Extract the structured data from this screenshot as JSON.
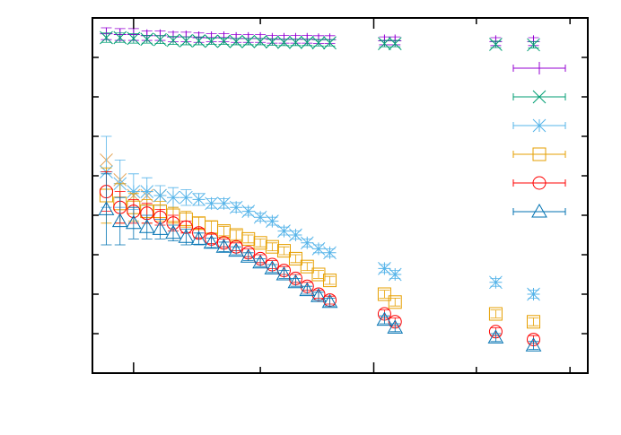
{
  "chart_data": {
    "type": "scatter",
    "x_scale": "log",
    "xlim": [
      0.77,
      1.22
    ],
    "ylim": [
      0,
      9
    ],
    "grid": false,
    "legend_position": "right",
    "colors": {
      "axis": "#000000",
      "purple": "#9400d3",
      "green": "#009e73",
      "sky": "#56b4e9",
      "orange": "#e69f00",
      "red": "#ff0000",
      "blue": "#0072b2"
    },
    "x": [
      0.78,
      0.79,
      0.8,
      0.81,
      0.82,
      0.83,
      0.84,
      0.85,
      0.86,
      0.87,
      0.88,
      0.89,
      0.9,
      0.91,
      0.92,
      0.93,
      0.94,
      0.95,
      0.96,
      1.01,
      1.02,
      1.12,
      1.16
    ],
    "series": [
      {
        "marker": "plus",
        "color": "#9400d3",
        "show_err": true,
        "values": [
          8.6,
          8.58,
          8.58,
          8.55,
          8.55,
          8.52,
          8.52,
          8.5,
          8.5,
          8.5,
          8.48,
          8.48,
          8.48,
          8.46,
          8.46,
          8.46,
          8.46,
          8.45,
          8.45,
          8.42,
          8.42,
          8.4,
          8.4
        ],
        "errors": [
          0.15,
          0.15,
          0.15,
          0.12,
          0.12,
          0.12,
          0.12,
          0.12,
          0.1,
          0.1,
          0.1,
          0.1,
          0.1,
          0.1,
          0.1,
          0.1,
          0.1,
          0.1,
          0.1,
          0.1,
          0.1,
          0.1,
          0.1
        ]
      },
      {
        "marker": "x",
        "color": "#009e73",
        "show_err": true,
        "values": [
          8.5,
          8.5,
          8.48,
          8.46,
          8.45,
          8.43,
          8.42,
          8.42,
          8.41,
          8.41,
          8.4,
          8.4,
          8.4,
          8.39,
          8.38,
          8.38,
          8.38,
          8.37,
          8.37,
          8.35,
          8.35,
          8.33,
          8.32
        ],
        "errors": [
          0.12,
          0.12,
          0.12,
          0.1,
          0.1,
          0.1,
          0.1,
          0.1,
          0.08,
          0.08,
          0.08,
          0.08,
          0.08,
          0.08,
          0.08,
          0.08,
          0.08,
          0.08,
          0.08,
          0.08,
          0.08,
          0.08,
          0.08
        ]
      },
      {
        "marker": "x",
        "color": "#e4a85e",
        "show_err": false,
        "values": [
          5.4,
          4.9,
          4.5,
          4.5,
          4.5
        ],
        "errors": [
          0,
          0,
          0,
          0,
          0
        ]
      },
      {
        "marker": "asterisk",
        "color": "#56b4e9",
        "show_err": true,
        "values": [
          5.1,
          4.8,
          4.6,
          4.6,
          4.5,
          4.45,
          4.45,
          4.4,
          4.3,
          4.3,
          4.2,
          4.1,
          3.95,
          3.85,
          3.6,
          3.5,
          3.3,
          3.15,
          3.05,
          2.65,
          2.5,
          2.3,
          2.0
        ],
        "errors": [
          0.9,
          0.6,
          0.45,
          0.35,
          0.25,
          0.25,
          0.2,
          0.15,
          0.12,
          0.12,
          0.12,
          0.1,
          0.1,
          0.1,
          0.1,
          0.1,
          0.1,
          0.1,
          0.1,
          0.1,
          0.1,
          0.1,
          0.1
        ]
      },
      {
        "marker": "square",
        "color": "#e69f00",
        "show_err": true,
        "values": [
          4.5,
          4.3,
          4.2,
          4.1,
          4.1,
          4.0,
          3.9,
          3.8,
          3.7,
          3.6,
          3.5,
          3.4,
          3.3,
          3.2,
          3.1,
          2.9,
          2.7,
          2.5,
          2.35,
          2.0,
          1.8,
          1.5,
          1.3
        ],
        "errors": [
          0.7,
          0.5,
          0.35,
          0.3,
          0.25,
          0.2,
          0.2,
          0.15,
          0.15,
          0.12,
          0.12,
          0.1,
          0.1,
          0.1,
          0.1,
          0.1,
          0.1,
          0.1,
          0.1,
          0.1,
          0.1,
          0.1,
          0.1
        ]
      },
      {
        "marker": "circle",
        "color": "#ff0000",
        "show_err": true,
        "values": [
          4.6,
          4.2,
          4.1,
          4.05,
          3.95,
          3.8,
          3.7,
          3.55,
          3.4,
          3.3,
          3.2,
          3.05,
          2.9,
          2.75,
          2.6,
          2.4,
          2.2,
          2.0,
          1.85,
          1.5,
          1.3,
          1.05,
          0.85
        ],
        "errors": [
          0.5,
          0.4,
          0.3,
          0.25,
          0.2,
          0.2,
          0.15,
          0.12,
          0.12,
          0.1,
          0.1,
          0.1,
          0.1,
          0.1,
          0.1,
          0.1,
          0.1,
          0.1,
          0.1,
          0.1,
          0.1,
          0.1,
          0.1
        ]
      },
      {
        "marker": "triangle",
        "color": "#0072b2",
        "show_err": true,
        "values": [
          4.15,
          3.85,
          3.8,
          3.7,
          3.65,
          3.55,
          3.45,
          3.4,
          3.3,
          3.2,
          3.1,
          2.95,
          2.8,
          2.65,
          2.5,
          2.3,
          2.1,
          1.95,
          1.8,
          1.35,
          1.15,
          0.9,
          0.7
        ],
        "errors": [
          0.9,
          0.6,
          0.4,
          0.3,
          0.25,
          0.2,
          0.2,
          0.15,
          0.12,
          0.12,
          0.1,
          0.1,
          0.1,
          0.1,
          0.1,
          0.1,
          0.1,
          0.1,
          0.1,
          0.1,
          0.1,
          0.1,
          0.1
        ]
      }
    ],
    "legend": [
      {
        "marker": "plus",
        "color": "#9400d3"
      },
      {
        "marker": "x",
        "color": "#009e73"
      },
      {
        "marker": "asterisk",
        "color": "#56b4e9"
      },
      {
        "marker": "square",
        "color": "#e69f00"
      },
      {
        "marker": "circle",
        "color": "#ff0000"
      },
      {
        "marker": "triangle",
        "color": "#0072b2"
      }
    ]
  }
}
